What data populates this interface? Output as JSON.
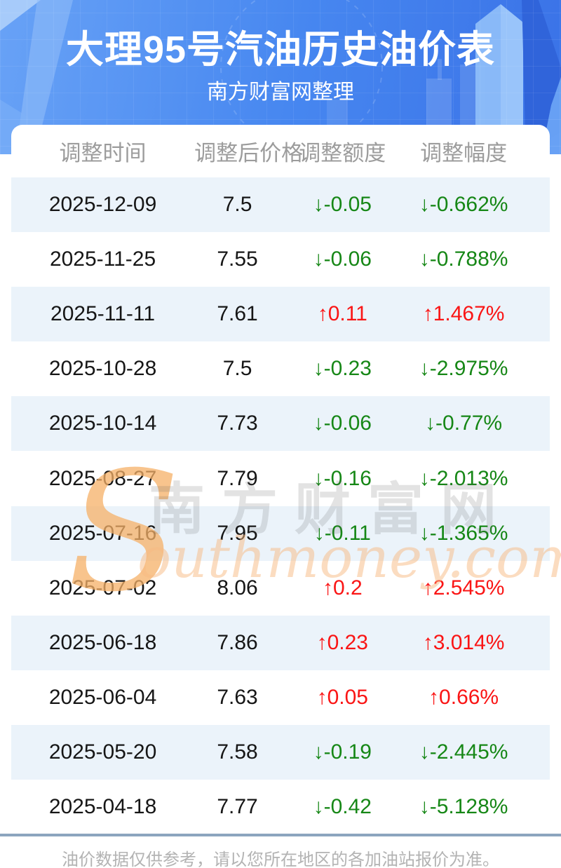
{
  "header": {
    "title": "大理95号汽油历史油价表",
    "subtitle": "南方财富网整理"
  },
  "chart_data": {
    "type": "table",
    "title": "大理95号汽油历史油价表",
    "columns": [
      "调整时间",
      "调整后价格",
      "调整额度",
      "调整幅度"
    ],
    "rows": [
      {
        "date": "2025-12-09",
        "price": "7.5",
        "change": "-0.05",
        "percent": "-0.662%",
        "direction": "down"
      },
      {
        "date": "2025-11-25",
        "price": "7.55",
        "change": "-0.06",
        "percent": "-0.788%",
        "direction": "down"
      },
      {
        "date": "2025-11-11",
        "price": "7.61",
        "change": "0.11",
        "percent": "1.467%",
        "direction": "up"
      },
      {
        "date": "2025-10-28",
        "price": "7.5",
        "change": "-0.23",
        "percent": "-2.975%",
        "direction": "down"
      },
      {
        "date": "2025-10-14",
        "price": "7.73",
        "change": "-0.06",
        "percent": "-0.77%",
        "direction": "down"
      },
      {
        "date": "2025-08-27",
        "price": "7.79",
        "change": "-0.16",
        "percent": "-2.013%",
        "direction": "down"
      },
      {
        "date": "2025-07-16",
        "price": "7.95",
        "change": "-0.11",
        "percent": "-1.365%",
        "direction": "down"
      },
      {
        "date": "2025-07-02",
        "price": "8.06",
        "change": "0.2",
        "percent": "2.545%",
        "direction": "up"
      },
      {
        "date": "2025-06-18",
        "price": "7.86",
        "change": "0.23",
        "percent": "3.014%",
        "direction": "up"
      },
      {
        "date": "2025-06-04",
        "price": "7.63",
        "change": "0.05",
        "percent": "0.66%",
        "direction": "up"
      },
      {
        "date": "2025-05-20",
        "price": "7.58",
        "change": "-0.19",
        "percent": "-2.445%",
        "direction": "down"
      },
      {
        "date": "2025-04-18",
        "price": "7.77",
        "change": "-0.42",
        "percent": "-5.128%",
        "direction": "down"
      }
    ]
  },
  "icons": {
    "down_arrow": "↓",
    "up_arrow": "↑"
  },
  "watermark": {
    "s_glyph": "S",
    "site_name_cn": "南方财富网",
    "domain_rest": "outhmoney.com"
  },
  "footer": {
    "note": "油价数据仅供参考，请以您所在地区的各加油站报价为准。"
  },
  "colors": {
    "hero_blue_light": "#68a2f6",
    "hero_blue_dark": "#3a72e7",
    "row_alt_background": "#ebf3fa",
    "down_green": "#168716",
    "up_red": "#fa1515",
    "header_text_gray": "#9c9c9c",
    "divider_blue_gray": "#8ca5be",
    "footnote_gray": "#b3b3b3",
    "watermark_orange": "#f6b168"
  }
}
